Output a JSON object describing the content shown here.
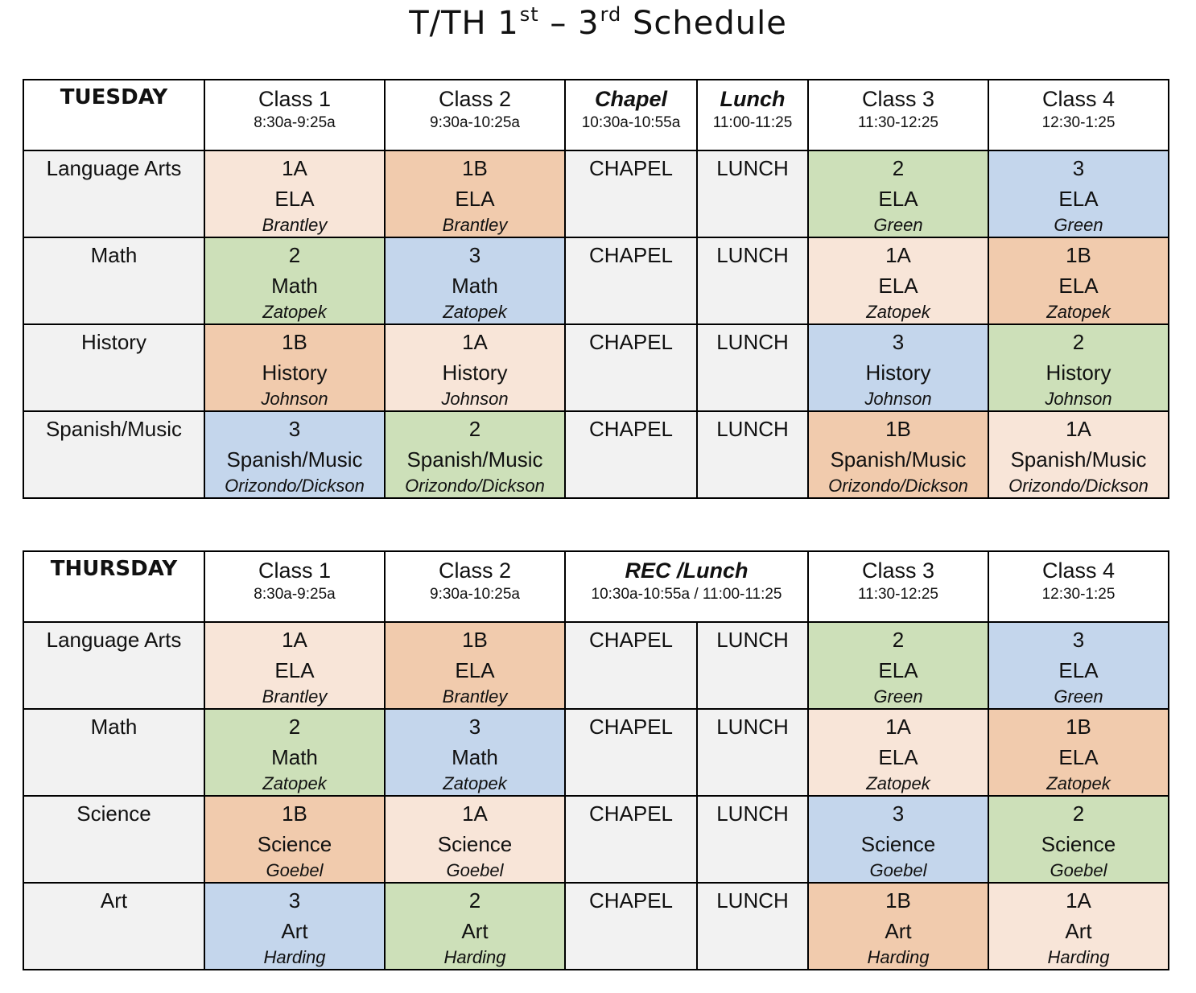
{
  "title": {
    "prefix": "T/TH 1",
    "sup1": "st",
    "middle": " – 3",
    "sup2": "rd",
    "suffix": " Schedule"
  },
  "colors": {
    "peach_light": "#f8e5d8",
    "peach": "#f1cbad",
    "green": "#cde0b9",
    "blue": "#c4d6ec",
    "gray": "#f2f2f2"
  },
  "tuesday": {
    "day": "TUESDAY",
    "headers": [
      {
        "name": "Class 1",
        "time": "8:30a-9:25a"
      },
      {
        "name": "Class 2",
        "time": "9:30a-10:25a"
      },
      {
        "name": "Chapel",
        "time": "10:30a-10:55a"
      },
      {
        "name": "Lunch",
        "time": "11:00-11:25"
      },
      {
        "name": "Class 3",
        "time": "11:30-12:25"
      },
      {
        "name": "Class 4",
        "time": "12:30-1:25"
      }
    ],
    "rows": [
      {
        "subject": "Language Arts",
        "chapel": "CHAPEL",
        "lunch": "LUNCH",
        "cells": [
          {
            "group": "1A",
            "course": "ELA",
            "teacher": "Brantley",
            "color": "peach_light"
          },
          {
            "group": "1B",
            "course": "ELA",
            "teacher": "Brantley",
            "color": "peach"
          },
          {
            "group": "2",
            "course": "ELA",
            "teacher": "Green",
            "color": "green"
          },
          {
            "group": "3",
            "course": "ELA",
            "teacher": "Green",
            "color": "blue"
          }
        ]
      },
      {
        "subject": "Math",
        "chapel": "CHAPEL",
        "lunch": "LUNCH",
        "cells": [
          {
            "group": "2",
            "course": "Math",
            "teacher": "Zatopek",
            "color": "green"
          },
          {
            "group": "3",
            "course": "Math",
            "teacher": "Zatopek",
            "color": "blue"
          },
          {
            "group": "1A",
            "course": "ELA",
            "teacher": "Zatopek",
            "color": "peach_light"
          },
          {
            "group": "1B",
            "course": "ELA",
            "teacher": "Zatopek",
            "color": "peach"
          }
        ]
      },
      {
        "subject": "History",
        "chapel": "CHAPEL",
        "lunch": "LUNCH",
        "cells": [
          {
            "group": "1B",
            "course": "History",
            "teacher": "Johnson",
            "color": "peach"
          },
          {
            "group": "1A",
            "course": "History",
            "teacher": "Johnson",
            "color": "peach_light"
          },
          {
            "group": "3",
            "course": "History",
            "teacher": "Johnson",
            "color": "blue"
          },
          {
            "group": "2",
            "course": "History",
            "teacher": "Johnson",
            "color": "green"
          }
        ]
      },
      {
        "subject": "Spanish/Music",
        "chapel": "CHAPEL",
        "lunch": "LUNCH",
        "cells": [
          {
            "group": "3",
            "course": "Spanish/Music",
            "teacher": "Orizondo/Dickson",
            "color": "blue"
          },
          {
            "group": "2",
            "course": "Spanish/Music",
            "teacher": "Orizondo/Dickson",
            "color": "green"
          },
          {
            "group": "1B",
            "course": "Spanish/Music",
            "teacher": "Orizondo/Dickson",
            "color": "peach"
          },
          {
            "group": "1A",
            "course": "Spanish/Music",
            "teacher": "Orizondo/Dickson",
            "color": "peach_light"
          }
        ]
      }
    ]
  },
  "thursday": {
    "day": "THURSDAY",
    "headers": [
      {
        "name": "Class 1",
        "time": "8:30a-9:25a"
      },
      {
        "name": "Class 2",
        "time": "9:30a-10:25a"
      },
      {
        "name": "REC /Lunch",
        "time": "10:30a-10:55a / 11:00-11:25"
      },
      {
        "name": "Class 3",
        "time": "11:30-12:25"
      },
      {
        "name": "Class 4",
        "time": "12:30-1:25"
      }
    ],
    "rows": [
      {
        "subject": "Language Arts",
        "chapel": "CHAPEL",
        "lunch": "LUNCH",
        "cells": [
          {
            "group": "1A",
            "course": "ELA",
            "teacher": "Brantley",
            "color": "peach_light"
          },
          {
            "group": "1B",
            "course": "ELA",
            "teacher": "Brantley",
            "color": "peach"
          },
          {
            "group": "2",
            "course": "ELA",
            "teacher": "Green",
            "color": "green"
          },
          {
            "group": "3",
            "course": "ELA",
            "teacher": "Green",
            "color": "blue"
          }
        ]
      },
      {
        "subject": "Math",
        "chapel": "CHAPEL",
        "lunch": "LUNCH",
        "cells": [
          {
            "group": "2",
            "course": "Math",
            "teacher": "Zatopek",
            "color": "green"
          },
          {
            "group": "3",
            "course": "Math",
            "teacher": "Zatopek",
            "color": "blue"
          },
          {
            "group": "1A",
            "course": "ELA",
            "teacher": "Zatopek",
            "color": "peach_light"
          },
          {
            "group": "1B",
            "course": "ELA",
            "teacher": "Zatopek",
            "color": "peach"
          }
        ]
      },
      {
        "subject": "Science",
        "chapel": "CHAPEL",
        "lunch": "LUNCH",
        "cells": [
          {
            "group": "1B",
            "course": "Science",
            "teacher": "Goebel",
            "color": "peach"
          },
          {
            "group": "1A",
            "course": "Science",
            "teacher": "Goebel",
            "color": "peach_light"
          },
          {
            "group": "3",
            "course": "Science",
            "teacher": "Goebel",
            "color": "blue"
          },
          {
            "group": "2",
            "course": "Science",
            "teacher": "Goebel",
            "color": "green"
          }
        ]
      },
      {
        "subject": "Art",
        "chapel": "CHAPEL",
        "lunch": "LUNCH",
        "cells": [
          {
            "group": "3",
            "course": "Art",
            "teacher": "Harding",
            "color": "blue"
          },
          {
            "group": "2",
            "course": "Art",
            "teacher": "Harding",
            "color": "green"
          },
          {
            "group": "1B",
            "course": "Art",
            "teacher": "Harding",
            "color": "peach"
          },
          {
            "group": "1A",
            "course": "Art",
            "teacher": "Harding",
            "color": "peach_light"
          }
        ]
      }
    ]
  }
}
